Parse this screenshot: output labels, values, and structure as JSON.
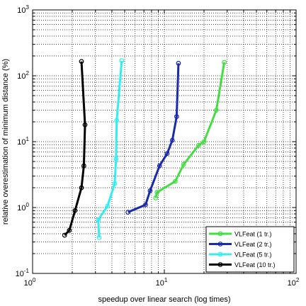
{
  "chart_data": {
    "type": "line",
    "xlabel": "speedup over linear search (log times)",
    "ylabel": "relative overestimation of minimum distance (%)",
    "xscale": "log",
    "yscale": "log",
    "xlim": [
      1,
      100
    ],
    "ylim": [
      0.1,
      1000
    ],
    "grid": true,
    "legend_position": "bottom-right",
    "x_ticks": [
      {
        "base": "10",
        "exp": "0",
        "value": 1
      },
      {
        "base": "10",
        "exp": "1",
        "value": 10
      },
      {
        "base": "10",
        "exp": "2",
        "value": 100
      }
    ],
    "y_ticks": [
      {
        "base": "10",
        "exp": "-1",
        "value": 0.1
      },
      {
        "base": "10",
        "exp": "0",
        "value": 1
      },
      {
        "base": "10",
        "exp": "1",
        "value": 10
      },
      {
        "base": "10",
        "exp": "2",
        "value": 100
      },
      {
        "base": "10",
        "exp": "3",
        "value": 1000
      }
    ],
    "series": [
      {
        "name": "VLFeat (1 tr.)",
        "color": "#44dd44",
        "points": [
          [
            8.6,
            1.4
          ],
          [
            8.8,
            1.7
          ],
          [
            12.1,
            2.5
          ],
          [
            14.0,
            4.5
          ],
          [
            18.2,
            8.8
          ],
          [
            20.0,
            10.0
          ],
          [
            24.8,
            30.0
          ],
          [
            28.5,
            160.0
          ]
        ]
      },
      {
        "name": "VLFeat (2 tr.)",
        "color": "#1a2aaa",
        "points": [
          [
            5.3,
            0.85
          ],
          [
            7.2,
            1.1
          ],
          [
            7.8,
            1.8
          ],
          [
            9.2,
            4.3
          ],
          [
            10.5,
            6.6
          ],
          [
            11.5,
            10.5
          ],
          [
            12.4,
            24.0
          ],
          [
            12.8,
            155.0
          ]
        ]
      },
      {
        "name": "VLFeat (5 tr.)",
        "color": "#33eeee",
        "points": [
          [
            3.2,
            0.35
          ],
          [
            3.15,
            0.65
          ],
          [
            3.7,
            1.05
          ],
          [
            4.2,
            2.3
          ],
          [
            4.3,
            5.5
          ],
          [
            4.35,
            21.0
          ],
          [
            4.75,
            170.0
          ]
        ]
      },
      {
        "name": "VLFeat (10 tr.)",
        "color": "#000000",
        "points": [
          [
            1.75,
            0.38
          ],
          [
            1.9,
            0.45
          ],
          [
            2.1,
            0.9
          ],
          [
            2.35,
            2.0
          ],
          [
            2.45,
            4.3
          ],
          [
            2.5,
            18.0
          ],
          [
            2.35,
            165.0
          ]
        ]
      }
    ]
  }
}
